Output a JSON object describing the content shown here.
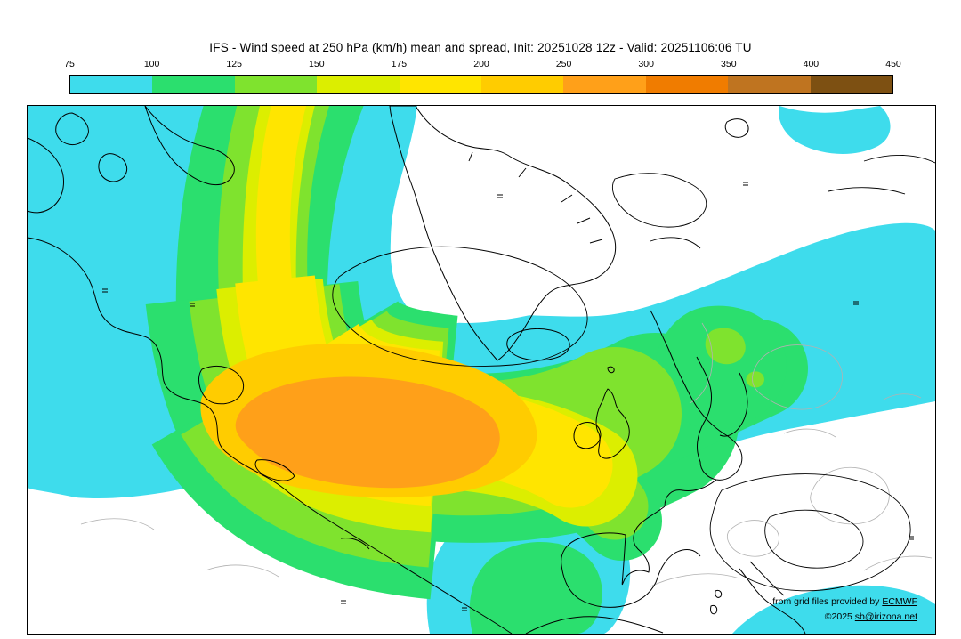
{
  "title": "IFS - Wind speed at 250 hPa (km/h) mean and spread, Init: 20251028 12z - Valid: 20251106:06 TU",
  "colorbar": {
    "tick_labels": [
      "75",
      "100",
      "125",
      "150",
      "175",
      "200",
      "250",
      "300",
      "350",
      "400",
      "450"
    ],
    "segments": [
      {
        "range": "75-100",
        "color": "#3edcec"
      },
      {
        "range": "100-125",
        "color": "#2bdf6e"
      },
      {
        "range": "125-150",
        "color": "#7fe32e"
      },
      {
        "range": "150-175",
        "color": "#dcee00"
      },
      {
        "range": "175-200",
        "color": "#ffe500"
      },
      {
        "range": "200-250",
        "color": "#ffcc00"
      },
      {
        "range": "250-300",
        "color": "#ffa019"
      },
      {
        "range": "300-350",
        "color": "#f07c00"
      },
      {
        "range": "350-400",
        "color": "#bf7420"
      },
      {
        "range": "400-450",
        "color": "#7d5012"
      }
    ]
  },
  "map": {
    "colors": {
      "cyan": "#3edcec",
      "green": "#2bdf6e",
      "chartreuse": "#7fe32e",
      "yellow_green": "#dcee00",
      "yellow": "#ffe500",
      "gold": "#ffcc00",
      "orange": "#ffa019",
      "white": "#ffffff",
      "coastline": "#000000",
      "wind_contour": "#000000",
      "spread_contour": "#b2b2b2"
    },
    "attribution": {
      "line1_prefix": "from grid files provided by ",
      "line1_link": "ECMWF",
      "line2_prefix": "©2025 ",
      "line2_link": "sb@irizona.net"
    }
  },
  "chart_data": {
    "type": "heatmap",
    "title": "IFS - Wind speed at 250 hPa (km/h) mean and spread",
    "init": "20251028 12z",
    "valid": "20251106:06 TU",
    "units": "km/h",
    "levels": [
      75,
      100,
      125,
      150,
      175,
      200,
      250,
      300,
      350,
      400,
      450
    ]
  }
}
